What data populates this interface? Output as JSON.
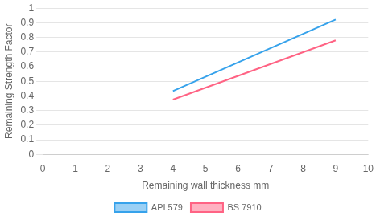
{
  "chart_data": {
    "type": "line",
    "series": [
      {
        "name": "API 579",
        "x": [
          4,
          9
        ],
        "values": [
          0.433,
          0.922
        ]
      },
      {
        "name": "BS 7910",
        "x": [
          4,
          9
        ],
        "values": [
          0.375,
          0.78
        ]
      }
    ],
    "x_label": "Remaining wall thickness mm",
    "y_label": "Remaining Strength Factor",
    "xlim": [
      0,
      10
    ],
    "xticks": [
      0,
      1,
      2,
      3,
      4,
      5,
      6,
      7,
      8,
      9,
      10
    ],
    "ylim": [
      0,
      1.0
    ],
    "yticks": [
      0,
      0.1,
      0.2,
      0.3,
      0.4,
      0.5,
      0.6,
      0.7,
      0.8,
      0.9,
      1
    ],
    "grid": "y",
    "legend": "bottom"
  }
}
